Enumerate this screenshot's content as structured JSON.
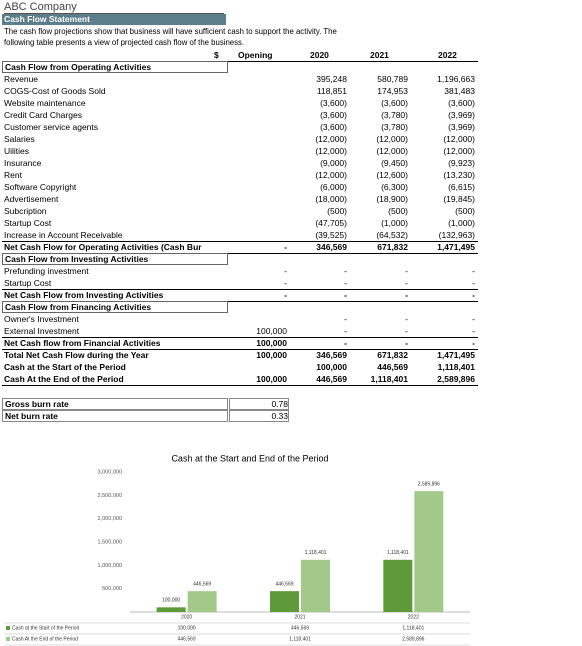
{
  "header": {
    "company": "ABC Company",
    "title": "Cash Flow Statement",
    "description": [
      "The cash flow projections show that business will have sufficient cash to support the activity. The",
      "following table presents a view of projected cash flow of the business."
    ]
  },
  "columns": [
    "$",
    "Opening",
    "2020",
    "2021",
    "2022"
  ],
  "sections": [
    {
      "title": "Cash Flow from Operating Activities",
      "rows": [
        [
          "Revenue",
          null,
          "395,248",
          "580,789",
          "1,196,663"
        ],
        [
          "COGS-Cost of Goods Sold",
          null,
          "118,851",
          "174,953",
          "381,483"
        ],
        [
          "Website maintenance",
          null,
          "(3,600)",
          "(3,600)",
          "(3,600)"
        ],
        [
          "Credit Card Charges",
          null,
          "(3,600)",
          "(3,780)",
          "(3,969)"
        ],
        [
          "Customer service agents",
          null,
          "(3,600)",
          "(3,780)",
          "(3,969)"
        ],
        [
          "Salaries",
          null,
          "(12,000)",
          "(12,000)",
          "(12,000)"
        ],
        [
          "Uilities",
          null,
          "(12,000)",
          "(12,000)",
          "(12,000)"
        ],
        [
          "Insurance",
          null,
          "(9,000)",
          "(9,450)",
          "(9,923)"
        ],
        [
          "Rent",
          null,
          "(12,000)",
          "(12,600)",
          "(13,230)"
        ],
        [
          "Software Copyright",
          null,
          "(6,000)",
          "(6,300)",
          "(6,615)"
        ],
        [
          "Advertisement",
          null,
          "(18,000)",
          "(18,900)",
          "(19,845)"
        ],
        [
          "Subcription",
          null,
          "(500)",
          "(500)",
          "(500)"
        ],
        [
          "Startup Cost",
          null,
          "(47,705)",
          "(1,000)",
          "(1,000)"
        ],
        [
          "Increase in Account Receivable",
          null,
          "(39,525)",
          "(64,532)",
          "(132,963)"
        ]
      ],
      "net": [
        "Net Cash Flow for Operating Activities (Cash Bur",
        "-",
        "346,569",
        "671,832",
        "1,471,495"
      ]
    },
    {
      "title": "Cash Flow from Investing Activities",
      "rows": [
        [
          "Prefunding investment",
          "-",
          "-",
          "-",
          "-"
        ],
        [
          "Startup Cost",
          "-",
          "-",
          "-",
          "-"
        ]
      ],
      "net": [
        "Net Cash Flow from Investing Activities",
        "-",
        "-",
        "-",
        "-"
      ]
    },
    {
      "title": "Cash Flow from Financing Activities",
      "rows": [
        [
          "Owner's Investment",
          null,
          "-",
          "-",
          "-"
        ],
        [
          "External Investment",
          "100,000",
          "-",
          "-",
          "-"
        ]
      ],
      "net": [
        "Net Cash flow from Financial Activities",
        "100,000",
        "-",
        "-",
        "-"
      ]
    }
  ],
  "summary": [
    [
      "Total Net Cash Flow during the Year",
      "100,000",
      "346,569",
      "671,832",
      "1,471,495"
    ],
    [
      "Cash at the Start of the Period",
      null,
      "100,000",
      "446,569",
      "1,118,401"
    ],
    [
      "Cash At the End of the Period",
      "100,000",
      "446,569",
      "1,118,401",
      "2,589,896"
    ]
  ],
  "burn": [
    [
      "Gross burn rate",
      "0.78"
    ],
    [
      "Net burn rate",
      "0.33"
    ]
  ],
  "chart_data": {
    "type": "bar",
    "title": "Cash at the Start and End of the Period",
    "categories": [
      "2020",
      "2021",
      "2022"
    ],
    "series": [
      {
        "name": "Cash at the Start of the Period",
        "color": "#5e9a3a",
        "values": [
          100000,
          446569,
          1118401
        ],
        "value_labels": [
          "100,000",
          "446,569",
          "1,118,401"
        ]
      },
      {
        "name": "Cash At the End of the Period",
        "color": "#a3c98a",
        "values": [
          446569,
          1118401,
          2589896
        ],
        "value_labels": [
          "446,569",
          "1,118,401",
          "2,589,896"
        ]
      }
    ],
    "ylim": [
      0,
      3000000
    ],
    "yticks": [
      {
        "value": 500000,
        "label": "500,000"
      },
      {
        "value": 1000000,
        "label": "1,000,000"
      },
      {
        "value": 1500000,
        "label": "1,500,000"
      },
      {
        "value": 2000000,
        "label": "2,000,000"
      },
      {
        "value": 2500000,
        "label": "2,500,000"
      },
      {
        "value": 3000000,
        "label": "3,000,000"
      }
    ]
  }
}
